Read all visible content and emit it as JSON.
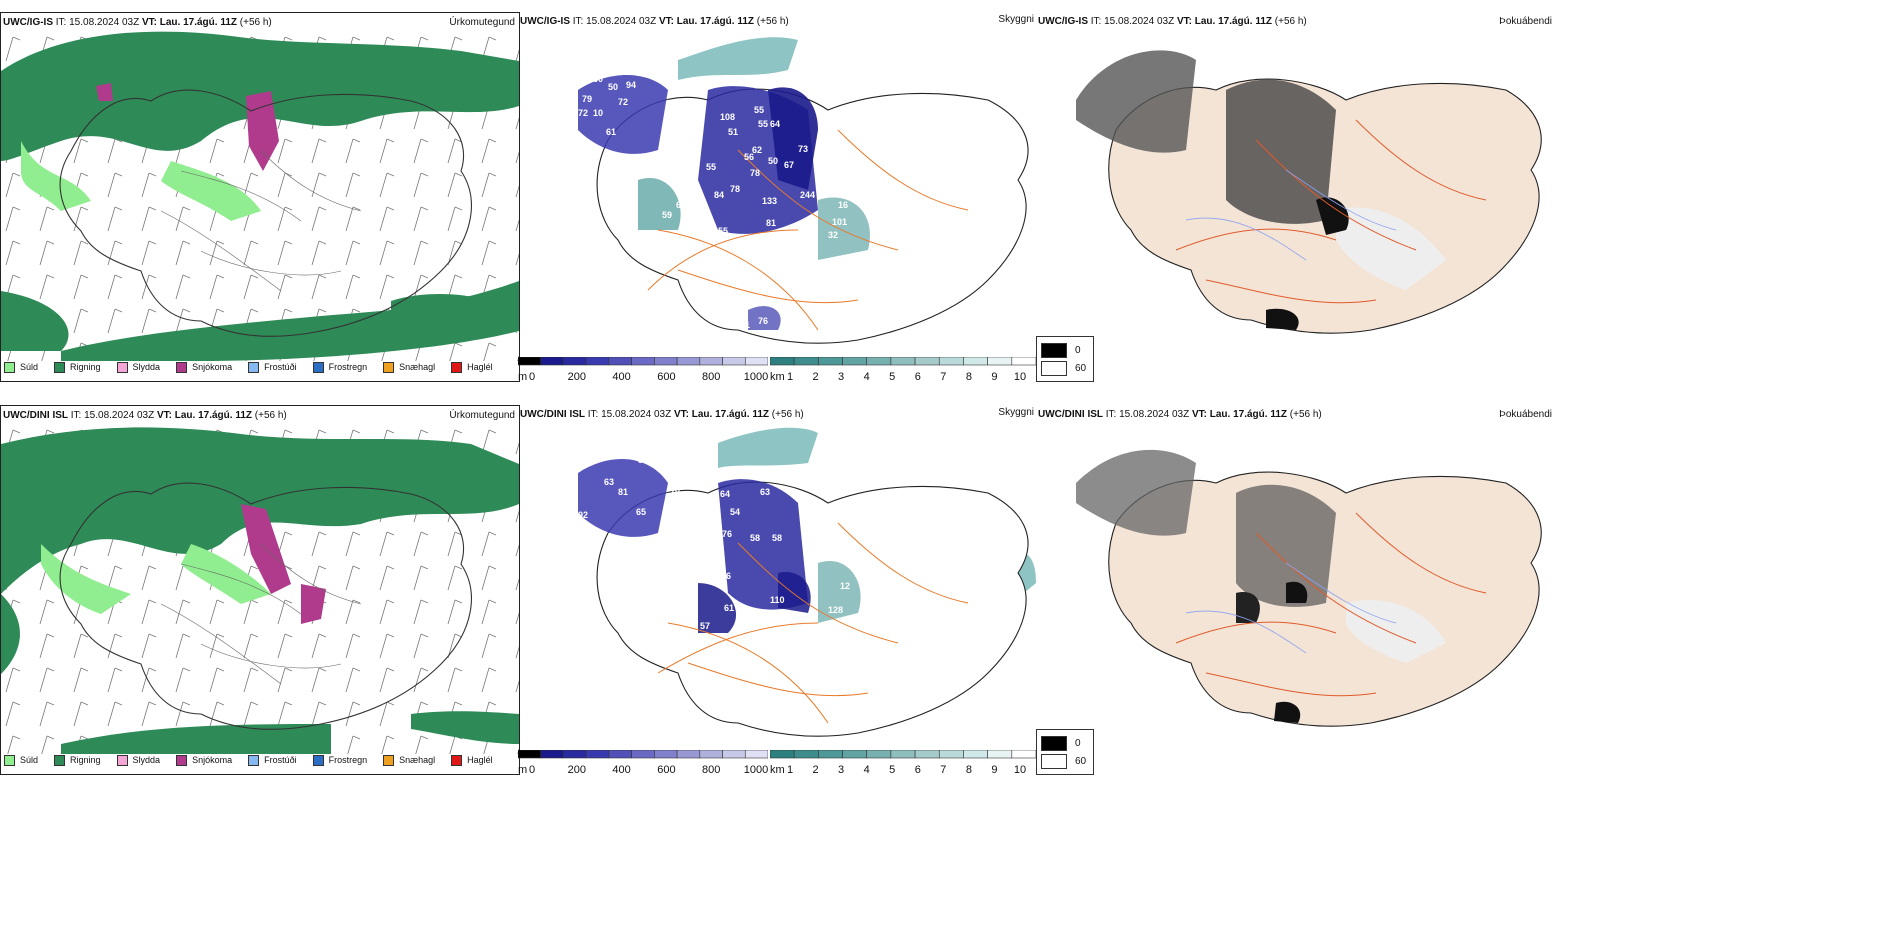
{
  "panels": [
    {
      "row": "top",
      "header_model": "UWC/IG-IS",
      "header_it_label": "IT:",
      "header_it": "15.08.2024 03Z",
      "header_vt_label": "VT:",
      "header_vt": "Lau. 17.ágú. 11Z",
      "header_lead": "(+56 h)",
      "precip_title": "Úrkomutegund",
      "visibility_title": "Skyggni",
      "cloud_title": "Þokuábendi",
      "numbers": [
        "76",
        "50",
        "50",
        "94",
        "79",
        "72",
        "72",
        "10",
        "89",
        "61",
        "108",
        "55",
        "51",
        "55",
        "64",
        "62",
        "56",
        "50",
        "67",
        "85",
        "55",
        "73",
        "78",
        "84",
        "78",
        "65",
        "133",
        "68",
        "244",
        "59",
        "55",
        "54",
        "16",
        "37",
        "101",
        "32",
        "41",
        "76",
        "81"
      ]
    },
    {
      "row": "bottom",
      "header_model": "UWC/DINI ISL",
      "header_it_label": "IT:",
      "header_it": "15.08.2024 03Z",
      "header_vt_label": "VT:",
      "header_vt": "Lau. 17.ágú. 11Z",
      "header_lead": "(+56 h)",
      "precip_title": "Úrkomutegund",
      "visibility_title": "Skyggni",
      "cloud_title": "Þokuábendi",
      "numbers": [
        "73",
        "36",
        "63",
        "81",
        "65",
        "92",
        "70",
        "64",
        "63",
        "54",
        "76",
        "58",
        "58",
        "106",
        "74",
        "61",
        "110",
        "128",
        "57",
        "50",
        "12"
      ]
    }
  ],
  "precip_legend": [
    {
      "label": "Súld",
      "color": "#90ee90"
    },
    {
      "label": "Rigning",
      "color": "#2e8b57"
    },
    {
      "label": "Slydda",
      "color": "#f4a6d6"
    },
    {
      "label": "Snjókoma",
      "color": "#b03a8c"
    },
    {
      "label": "Frostúði",
      "color": "#87b8f0"
    },
    {
      "label": "Frostregn",
      "color": "#2a6fc4"
    },
    {
      "label": "Snæhagl",
      "color": "#f0a020"
    },
    {
      "label": "Haglél",
      "color": "#e01818"
    }
  ],
  "height_bar": {
    "unit": "m",
    "ticks": [
      "0",
      "200",
      "400",
      "600",
      "800",
      "1000"
    ],
    "colors": [
      "#000000",
      "#1a1a8c",
      "#2a2aa0",
      "#3a3ab0",
      "#5050b8",
      "#6a6ac4",
      "#8080cc",
      "#9898d4",
      "#b0b0dc",
      "#c8c8e8",
      "#e0e0f4"
    ]
  },
  "km_bar": {
    "unit": "km",
    "ticks": [
      "1",
      "2",
      "3",
      "4",
      "5",
      "6",
      "7",
      "8",
      "9",
      "10"
    ],
    "colors": [
      "#2e8080",
      "#3e8c8c",
      "#4e9898",
      "#62a4a4",
      "#78b0b0",
      "#8ebebe",
      "#a4caca",
      "#badada",
      "#d0e8e8",
      "#e8f4f4",
      "#ffffff"
    ]
  },
  "bw_legend": {
    "top": "0",
    "bottom": "60"
  },
  "colors": {
    "rain": "#2e8b57",
    "drizzle": "#90ee90",
    "snow": "#b03a8c",
    "sleet": "#f4a6d6",
    "roads": "#e87a2a",
    "land": "#f4e4d6",
    "rivers": "#8aa2f0",
    "coast": "#222222",
    "fog": "#4a9898"
  }
}
